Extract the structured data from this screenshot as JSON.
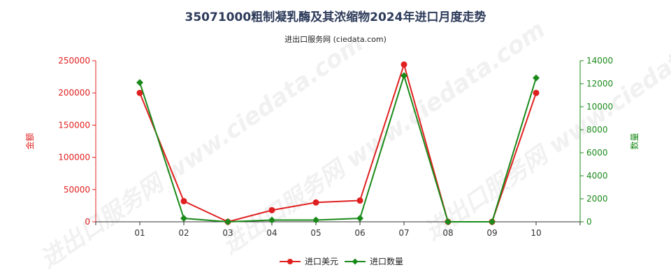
{
  "chart_data": {
    "type": "line",
    "title": "35071000粗制凝乳酶及其浓缩物2024年进口月度走势",
    "subtitle": "进出口服务网 (ciedata.com)",
    "watermark": "进出口服务网 www.ciedata.com",
    "categories": [
      "01",
      "02",
      "03",
      "04",
      "05",
      "06",
      "07",
      "08",
      "09",
      "10"
    ],
    "y_left": {
      "label": "金额",
      "min": 0,
      "max": 250000,
      "ticks": [
        "0",
        "50000",
        "100000",
        "150000",
        "200000",
        "250000"
      ],
      "color": "#e02020"
    },
    "y_right": {
      "label": "数量",
      "min": 0,
      "max": 14000,
      "ticks": [
        "0",
        "2000",
        "4000",
        "6000",
        "8000",
        "10000",
        "12000",
        "14000"
      ],
      "color": "#1a8a1a"
    },
    "series": [
      {
        "name": "进口美元",
        "axis": "left",
        "color": "#e02020",
        "marker": "circle",
        "values": [
          200000,
          32000,
          0,
          18000,
          30000,
          33000,
          244000,
          0,
          0,
          200000
        ]
      },
      {
        "name": "进口数量",
        "axis": "right",
        "color": "#1a8a1a",
        "marker": "diamond",
        "values": [
          12100,
          300,
          0,
          150,
          150,
          300,
          12700,
          0,
          0,
          12500
        ]
      }
    ],
    "legend_position": "bottom-center",
    "grid": false
  }
}
